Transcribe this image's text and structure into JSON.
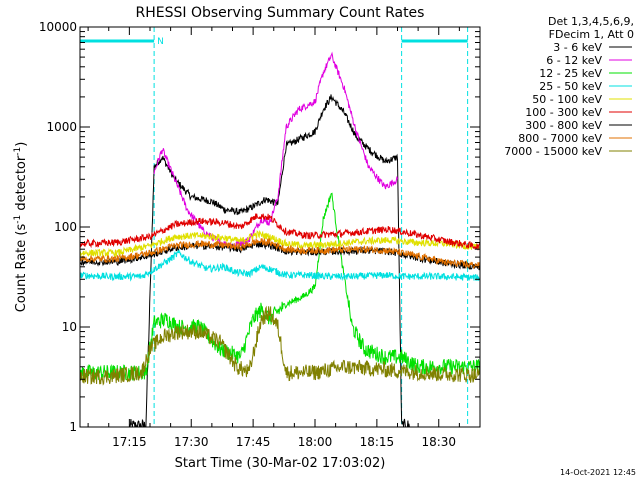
{
  "chart_data": {
    "type": "line",
    "title": "RHESSI Observing Summary Count Rates",
    "xlabel": "Start Time (30-Mar-02 17:03:02)",
    "ylabel_main": "Count Rate (s",
    "ylabel_sup1": "-1",
    "ylabel_mid": " detector",
    "ylabel_sup2": "-1",
    "ylabel_end": ")",
    "y_scale": "log",
    "ylim": [
      1,
      10000
    ],
    "xlim": [
      "17:03:02",
      "18:40:00"
    ],
    "x_ticks": [
      "17:15",
      "17:30",
      "17:45",
      "18:00",
      "18:15",
      "18:30"
    ],
    "y_ticks": [
      "1",
      "10",
      "100",
      "1000",
      "10000"
    ],
    "legend_header": [
      "Det 1,3,4,5,6,9,",
      "FDecim 1, Att 0"
    ],
    "legend_placement": "top-right outside plot",
    "flag_label": "N",
    "timestamp": "14-Oct-2021 12:45",
    "series": [
      {
        "name": "3 - 6 keV",
        "color": "#000000",
        "points": [
          [
            "17:15",
            1.0
          ],
          [
            "17:19",
            1.0
          ],
          [
            "17:21",
            400
          ],
          [
            "17:23",
            500
          ],
          [
            "17:26",
            300
          ],
          [
            "17:30",
            200
          ],
          [
            "17:35",
            180
          ],
          [
            "17:38",
            150
          ],
          [
            "17:42",
            140
          ],
          [
            "17:45",
            160
          ],
          [
            "17:48",
            190
          ],
          [
            "17:51",
            170
          ],
          [
            "17:53",
            650
          ],
          [
            "17:56",
            750
          ],
          [
            "18:00",
            900
          ],
          [
            "18:02",
            1500
          ],
          [
            "18:04",
            2000
          ],
          [
            "18:07",
            1400
          ],
          [
            "18:10",
            800
          ],
          [
            "18:13",
            600
          ],
          [
            "18:17",
            450
          ],
          [
            "18:20",
            500
          ],
          [
            "18:21",
            1.0
          ],
          [
            "18:23",
            1.0
          ]
        ]
      },
      {
        "name": "6 - 12 keV",
        "color": "#e000e0",
        "points": [
          [
            "17:21",
            350
          ],
          [
            "17:23",
            600
          ],
          [
            "17:26",
            300
          ],
          [
            "17:29",
            150
          ],
          [
            "17:33",
            90
          ],
          [
            "17:37",
            70
          ],
          [
            "17:40",
            65
          ],
          [
            "17:44",
            75
          ],
          [
            "17:47",
            120
          ],
          [
            "17:49",
            110
          ],
          [
            "17:51",
            200
          ],
          [
            "17:53",
            1000
          ],
          [
            "17:56",
            1500
          ],
          [
            "18:00",
            1800
          ],
          [
            "18:02",
            3500
          ],
          [
            "18:04",
            5200
          ],
          [
            "18:07",
            2500
          ],
          [
            "18:10",
            900
          ],
          [
            "18:13",
            400
          ],
          [
            "18:17",
            250
          ],
          [
            "18:20",
            300
          ]
        ]
      },
      {
        "name": "12 - 25 keV",
        "color": "#00e000",
        "points": [
          [
            "17:03:02",
            3.5
          ],
          [
            "17:10",
            3.5
          ],
          [
            "17:19",
            3.5
          ],
          [
            "17:21",
            11
          ],
          [
            "17:24",
            12
          ],
          [
            "17:27",
            10
          ],
          [
            "17:32",
            10
          ],
          [
            "17:37",
            6
          ],
          [
            "17:42",
            5
          ],
          [
            "17:45",
            12
          ],
          [
            "17:47",
            15
          ],
          [
            "17:49",
            12
          ],
          [
            "17:53",
            17
          ],
          [
            "17:57",
            20
          ],
          [
            "18:00",
            25
          ],
          [
            "18:02",
            120
          ],
          [
            "18:04",
            220
          ],
          [
            "18:06",
            60
          ],
          [
            "18:09",
            10
          ],
          [
            "18:12",
            6
          ],
          [
            "18:17",
            5
          ],
          [
            "18:21",
            5
          ],
          [
            "18:25",
            4
          ],
          [
            "18:30",
            4
          ],
          [
            "18:40",
            4
          ]
        ]
      },
      {
        "name": "25 - 50 keV",
        "color": "#00e0e0",
        "points": [
          [
            "17:03:02",
            33
          ],
          [
            "17:10",
            32
          ],
          [
            "17:18",
            32
          ],
          [
            "17:21",
            38
          ],
          [
            "17:24",
            45
          ],
          [
            "17:27",
            55
          ],
          [
            "17:30",
            45
          ],
          [
            "17:34",
            38
          ],
          [
            "17:38",
            40
          ],
          [
            "17:41",
            35
          ],
          [
            "17:44",
            34
          ],
          [
            "17:47",
            40
          ],
          [
            "17:49",
            38
          ],
          [
            "17:53",
            33
          ],
          [
            "17:58",
            33
          ],
          [
            "18:03",
            32
          ],
          [
            "18:10",
            32
          ],
          [
            "18:17",
            33
          ],
          [
            "18:22",
            32
          ],
          [
            "18:30",
            32
          ],
          [
            "18:40",
            31
          ]
        ]
      },
      {
        "name": "50 - 100 keV",
        "color": "#e0e000",
        "points": [
          [
            "17:03:02",
            55
          ],
          [
            "17:12",
            55
          ],
          [
            "17:20",
            65
          ],
          [
            "17:26",
            80
          ],
          [
            "17:32",
            82
          ],
          [
            "17:38",
            78
          ],
          [
            "17:42",
            72
          ],
          [
            "17:46",
            85
          ],
          [
            "17:49",
            80
          ],
          [
            "17:53",
            68
          ],
          [
            "17:58",
            65
          ],
          [
            "18:05",
            68
          ],
          [
            "18:12",
            72
          ],
          [
            "18:18",
            74
          ],
          [
            "18:24",
            70
          ],
          [
            "18:32",
            68
          ],
          [
            "18:40",
            62
          ]
        ]
      },
      {
        "name": "100 - 300 keV",
        "color": "#e00000",
        "points": [
          [
            "17:03:02",
            68
          ],
          [
            "17:12",
            70
          ],
          [
            "17:20",
            80
          ],
          [
            "17:26",
            105
          ],
          [
            "17:32",
            115
          ],
          [
            "17:38",
            110
          ],
          [
            "17:42",
            100
          ],
          [
            "17:46",
            130
          ],
          [
            "17:49",
            125
          ],
          [
            "17:53",
            90
          ],
          [
            "17:58",
            82
          ],
          [
            "18:05",
            85
          ],
          [
            "18:12",
            90
          ],
          [
            "18:18",
            95
          ],
          [
            "18:24",
            85
          ],
          [
            "18:32",
            72
          ],
          [
            "18:40",
            63
          ]
        ]
      },
      {
        "name": "300 - 800 keV",
        "color": "#000000",
        "points": [
          [
            "17:03:02",
            45
          ],
          [
            "17:12",
            45
          ],
          [
            "17:20",
            52
          ],
          [
            "17:26",
            62
          ],
          [
            "17:32",
            65
          ],
          [
            "17:38",
            63
          ],
          [
            "17:42",
            60
          ],
          [
            "17:46",
            68
          ],
          [
            "17:49",
            66
          ],
          [
            "17:53",
            57
          ],
          [
            "17:58",
            56
          ],
          [
            "18:05",
            57
          ],
          [
            "18:12",
            58
          ],
          [
            "18:18",
            57
          ],
          [
            "18:24",
            50
          ],
          [
            "18:32",
            43
          ],
          [
            "18:40",
            40
          ]
        ]
      },
      {
        "name": "800 - 7000 keV",
        "color": "#e07000",
        "points": [
          [
            "17:03:02",
            48
          ],
          [
            "17:12",
            48
          ],
          [
            "17:20",
            55
          ],
          [
            "17:26",
            65
          ],
          [
            "17:32",
            68
          ],
          [
            "17:38",
            66
          ],
          [
            "17:42",
            63
          ],
          [
            "17:46",
            72
          ],
          [
            "17:49",
            70
          ],
          [
            "17:53",
            60
          ],
          [
            "17:58",
            58
          ],
          [
            "18:05",
            59
          ],
          [
            "18:12",
            60
          ],
          [
            "18:18",
            58
          ],
          [
            "18:24",
            52
          ],
          [
            "18:32",
            44
          ],
          [
            "18:40",
            41
          ]
        ]
      },
      {
        "name": "7000 - 15000 keV",
        "color": "#808000",
        "points": [
          [
            "17:03:02",
            3.2
          ],
          [
            "17:10",
            3.2
          ],
          [
            "17:18",
            3.5
          ],
          [
            "17:20",
            6
          ],
          [
            "17:23",
            8
          ],
          [
            "17:27",
            9
          ],
          [
            "17:32",
            9
          ],
          [
            "17:37",
            7
          ],
          [
            "17:41",
            4
          ],
          [
            "17:44",
            3.5
          ],
          [
            "17:47",
            12
          ],
          [
            "17:49",
            14
          ],
          [
            "17:51",
            10
          ],
          [
            "17:53",
            3.5
          ],
          [
            "18:00",
            3.5
          ],
          [
            "18:07",
            4
          ],
          [
            "18:15",
            3.8
          ],
          [
            "18:22",
            3.6
          ],
          [
            "18:30",
            3.4
          ],
          [
            "18:40",
            3.3
          ]
        ]
      }
    ],
    "attenuator_intervals": [
      [
        "17:03:02",
        "17:21"
      ],
      [
        "18:21",
        "18:37"
      ]
    ]
  }
}
